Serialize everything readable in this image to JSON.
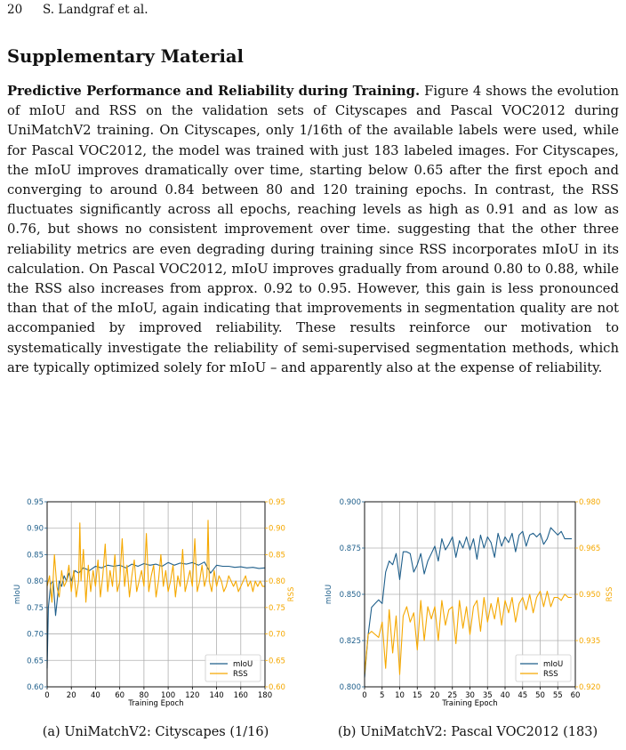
{
  "header": {
    "page_number": "20",
    "authors": "S. Landgraf et al."
  },
  "section_title": "Supplementary Material",
  "paragraph": {
    "lead": "Predictive Performance and Reliability during Training.",
    "body": " Figure 4 shows the evolution of mIoU and RSS on the validation sets of Cityscapes and Pascal VOC2012 during UniMatchV2 training. On Cityscapes, only 1/16th of the available labels were used, while for Pascal VOC2012, the model was trained with just 183 labeled images. For Cityscapes, the mIoU improves dramatically over time, starting below 0.65 after the first epoch and converging to around 0.84 between 80 and 120 training epochs. In contrast, the RSS fluctuates significantly across all epochs, reaching levels as high as 0.91 and as low as 0.76, but shows no consistent improvement over time. suggesting that the other three reliability metrics are even degrading during training since RSS incorporates mIoU in its calculation. On Pascal VOC2012, mIoU improves gradually from around 0.80 to 0.88, while the RSS also increases from approx. 0.92 to 0.95. However, this gain is less pronounced than that of the mIoU, again indicating that improvements in segmentation quality are not accompanied by improved reliability. These results reinforce our motivation to systematically investigate the reliability of semi-supervised segmentation methods, which are typically optimized solely for mIoU – and apparently also at the expense of reliability."
  },
  "captions": {
    "a": "(a) UniMatchV2: Cityscapes (1/16)",
    "b": "(b) UniMatchV2: Pascal VOC2012 (183)"
  },
  "colors": {
    "miou": "#1f5f8b",
    "rss": "#f5a800",
    "grid": "#b0b0b0"
  },
  "chart_data": [
    {
      "type": "line",
      "xlabel": "Training Epoch",
      "ylabel_left": "mIoU",
      "ylabel_right": "RSS",
      "xlim": [
        0,
        180
      ],
      "ylim_left": [
        0.6,
        0.95
      ],
      "ylim_right": [
        0.6,
        0.95
      ],
      "x_ticks": [
        0,
        20,
        40,
        60,
        80,
        100,
        120,
        140,
        160,
        180
      ],
      "x_tick_labels": [
        "0",
        "20",
        "40",
        "60",
        "80",
        "100",
        "120",
        "140",
        "160",
        "180"
      ],
      "y_ticks_left": [
        0.6,
        0.65,
        0.7,
        0.75,
        0.8,
        0.85,
        0.9,
        0.95
      ],
      "y_tick_labels_left": [
        "0.60",
        "0.65",
        "0.70",
        "0.75",
        "0.80",
        "0.85",
        "0.90",
        "0.95"
      ],
      "y_ticks_right": [
        0.6,
        0.65,
        0.7,
        0.75,
        0.8,
        0.85,
        0.9,
        0.95
      ],
      "y_tick_labels_right": [
        "0.60",
        "0.65",
        "0.70",
        "0.75",
        "0.80",
        "0.85",
        "0.90",
        "0.95"
      ],
      "grid": true,
      "legend": "bottom-right",
      "series": [
        {
          "name": "mIoU",
          "axis": "left",
          "x": [
            0,
            1,
            3,
            5,
            7,
            10,
            12,
            14,
            16,
            18,
            20,
            23,
            26,
            30,
            35,
            40,
            45,
            50,
            55,
            60,
            65,
            70,
            75,
            80,
            85,
            90,
            95,
            100,
            105,
            110,
            115,
            120,
            125,
            130,
            135,
            140,
            145,
            150,
            155,
            160,
            165,
            170,
            175,
            180
          ],
          "values": [
            0.635,
            0.75,
            0.795,
            0.8,
            0.735,
            0.8,
            0.79,
            0.81,
            0.8,
            0.815,
            0.8,
            0.82,
            0.815,
            0.825,
            0.82,
            0.828,
            0.825,
            0.83,
            0.828,
            0.83,
            0.825,
            0.832,
            0.828,
            0.833,
            0.83,
            0.832,
            0.828,
            0.835,
            0.83,
            0.834,
            0.832,
            0.835,
            0.83,
            0.836,
            0.815,
            0.83,
            0.828,
            0.828,
            0.826,
            0.827,
            0.825,
            0.826,
            0.824,
            0.825
          ]
        },
        {
          "name": "RSS",
          "axis": "right",
          "x": [
            0,
            2,
            4,
            6,
            8,
            10,
            12,
            14,
            16,
            18,
            20,
            22,
            24,
            26,
            27,
            28,
            30,
            32,
            34,
            36,
            38,
            40,
            42,
            44,
            46,
            48,
            50,
            52,
            54,
            56,
            58,
            60,
            62,
            64,
            66,
            68,
            70,
            72,
            74,
            76,
            78,
            80,
            82,
            84,
            86,
            88,
            90,
            92,
            94,
            96,
            98,
            100,
            102,
            104,
            106,
            108,
            110,
            112,
            114,
            116,
            118,
            120,
            122,
            124,
            126,
            128,
            130,
            132,
            133,
            134,
            136,
            138,
            140,
            142,
            144,
            146,
            148,
            150,
            152,
            154,
            156,
            158,
            160,
            162,
            164,
            166,
            168,
            170,
            172,
            174,
            176,
            178,
            180
          ],
          "values": [
            0.79,
            0.81,
            0.76,
            0.85,
            0.79,
            0.77,
            0.82,
            0.79,
            0.8,
            0.83,
            0.78,
            0.82,
            0.77,
            0.8,
            0.91,
            0.8,
            0.86,
            0.76,
            0.83,
            0.78,
            0.82,
            0.79,
            0.84,
            0.77,
            0.81,
            0.87,
            0.78,
            0.82,
            0.79,
            0.85,
            0.78,
            0.8,
            0.88,
            0.79,
            0.83,
            0.77,
            0.81,
            0.84,
            0.78,
            0.8,
            0.82,
            0.79,
            0.89,
            0.78,
            0.81,
            0.83,
            0.77,
            0.8,
            0.85,
            0.79,
            0.82,
            0.78,
            0.8,
            0.83,
            0.77,
            0.81,
            0.79,
            0.86,
            0.78,
            0.8,
            0.82,
            0.79,
            0.88,
            0.78,
            0.8,
            0.83,
            0.79,
            0.81,
            0.915,
            0.8,
            0.78,
            0.82,
            0.79,
            0.81,
            0.8,
            0.78,
            0.79,
            0.81,
            0.8,
            0.79,
            0.8,
            0.78,
            0.79,
            0.8,
            0.81,
            0.79,
            0.8,
            0.78,
            0.8,
            0.79,
            0.8,
            0.79,
            0.79
          ]
        }
      ]
    },
    {
      "type": "line",
      "xlabel": "Training Epoch",
      "ylabel_left": "mIoU",
      "ylabel_right": "RSS",
      "xlim": [
        0,
        60
      ],
      "ylim_left": [
        0.8,
        0.9
      ],
      "ylim_right": [
        0.92,
        0.98
      ],
      "x_ticks": [
        0,
        5,
        10,
        15,
        20,
        25,
        30,
        35,
        40,
        45,
        50,
        55,
        60
      ],
      "x_tick_labels": [
        "0",
        "5",
        "10",
        "15",
        "20",
        "25",
        "30",
        "35",
        "40",
        "45",
        "50",
        "55",
        "60"
      ],
      "y_ticks_left": [
        0.8,
        0.825,
        0.85,
        0.875,
        0.9
      ],
      "y_tick_labels_left": [
        "0.800",
        "0.825",
        "0.850",
        "0.875",
        "0.900"
      ],
      "y_ticks_right": [
        0.92,
        0.935,
        0.95,
        0.965,
        0.98
      ],
      "y_tick_labels_right": [
        "0.920",
        "0.935",
        "0.950",
        "0.965",
        "0.980"
      ],
      "grid": true,
      "legend": "bottom-right",
      "series": [
        {
          "name": "mIoU",
          "axis": "left",
          "x": [
            0,
            1,
            2,
            3,
            4,
            5,
            6,
            7,
            8,
            9,
            10,
            11,
            12,
            13,
            14,
            15,
            16,
            17,
            18,
            19,
            20,
            21,
            22,
            23,
            24,
            25,
            26,
            27,
            28,
            29,
            30,
            31,
            32,
            33,
            34,
            35,
            36,
            37,
            38,
            39,
            40,
            41,
            42,
            43,
            44,
            45,
            46,
            47,
            48,
            49,
            50,
            51,
            52,
            53,
            54,
            55,
            56,
            57,
            58,
            59
          ],
          "values": [
            0.805,
            0.828,
            0.843,
            0.845,
            0.847,
            0.845,
            0.862,
            0.868,
            0.866,
            0.872,
            0.858,
            0.873,
            0.873,
            0.872,
            0.862,
            0.866,
            0.872,
            0.861,
            0.868,
            0.872,
            0.876,
            0.868,
            0.88,
            0.874,
            0.877,
            0.881,
            0.87,
            0.879,
            0.875,
            0.881,
            0.874,
            0.88,
            0.869,
            0.882,
            0.875,
            0.881,
            0.878,
            0.87,
            0.883,
            0.876,
            0.881,
            0.878,
            0.883,
            0.873,
            0.882,
            0.884,
            0.876,
            0.882,
            0.883,
            0.881,
            0.883,
            0.877,
            0.88,
            0.886,
            0.884,
            0.882,
            0.884,
            0.88,
            0.88,
            0.88
          ]
        },
        {
          "name": "RSS",
          "axis": "right",
          "x": [
            0,
            1,
            2,
            3,
            4,
            5,
            6,
            7,
            8,
            9,
            10,
            11,
            12,
            13,
            14,
            15,
            16,
            17,
            18,
            19,
            20,
            21,
            22,
            23,
            24,
            25,
            26,
            27,
            28,
            29,
            30,
            31,
            32,
            33,
            34,
            35,
            36,
            37,
            38,
            39,
            40,
            41,
            42,
            43,
            44,
            45,
            46,
            47,
            48,
            49,
            50,
            51,
            52,
            53,
            54,
            55,
            56,
            57,
            58,
            59
          ],
          "values": [
            0.924,
            0.937,
            0.938,
            0.937,
            0.936,
            0.941,
            0.926,
            0.945,
            0.931,
            0.943,
            0.924,
            0.943,
            0.946,
            0.941,
            0.944,
            0.932,
            0.948,
            0.935,
            0.946,
            0.942,
            0.946,
            0.935,
            0.948,
            0.94,
            0.945,
            0.946,
            0.934,
            0.948,
            0.939,
            0.946,
            0.937,
            0.946,
            0.948,
            0.938,
            0.949,
            0.941,
            0.947,
            0.942,
            0.949,
            0.94,
            0.948,
            0.944,
            0.949,
            0.941,
            0.947,
            0.949,
            0.945,
            0.95,
            0.944,
            0.949,
            0.951,
            0.946,
            0.951,
            0.946,
            0.949,
            0.949,
            0.948,
            0.95,
            0.949,
            0.949
          ]
        }
      ]
    }
  ]
}
